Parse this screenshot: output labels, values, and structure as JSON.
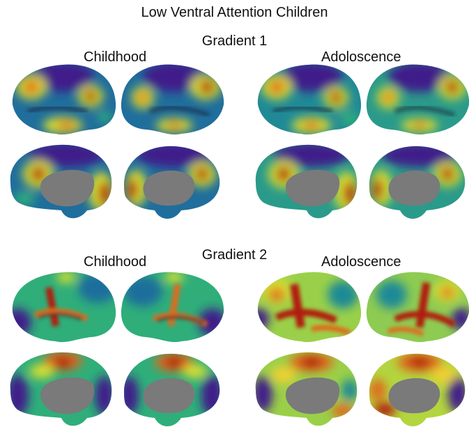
{
  "figure": {
    "title": "Low Ventral Attention Children",
    "gradient1": {
      "label": "Gradient 1",
      "left_column": "Childhood",
      "right_column": "Adoloscence"
    },
    "gradient2": {
      "label": "Gradient 2",
      "left_column": "Childhood",
      "right_column": "Adoloscence"
    }
  },
  "colormap": {
    "low": "#3f1d8a",
    "mid_low": "#1f7a9c",
    "mid": "#2fae7a",
    "mid_high": "#d9e033",
    "high": "#e06a1a",
    "max": "#8a1206",
    "medial_wall": "#7a7a7a"
  }
}
